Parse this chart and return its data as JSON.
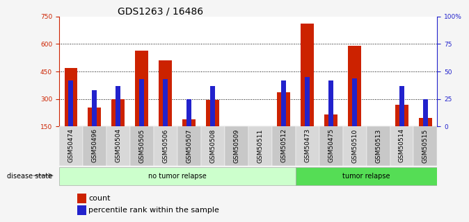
{
  "title": "GDS1263 / 16486",
  "samples": [
    "GSM50474",
    "GSM50496",
    "GSM50504",
    "GSM50505",
    "GSM50506",
    "GSM50507",
    "GSM50508",
    "GSM50509",
    "GSM50511",
    "GSM50512",
    "GSM50473",
    "GSM50475",
    "GSM50510",
    "GSM50513",
    "GSM50514",
    "GSM50515"
  ],
  "count_values": [
    470,
    255,
    300,
    565,
    510,
    190,
    295,
    150,
    150,
    335,
    710,
    215,
    590,
    150,
    270,
    195
  ],
  "percentile_values": [
    42,
    33,
    37,
    43,
    43,
    25,
    37,
    0,
    0,
    42,
    45,
    42,
    44,
    0,
    37,
    25
  ],
  "groups": [
    {
      "label": "no tumor relapse",
      "start": 0,
      "end": 10,
      "color": "#ccffcc"
    },
    {
      "label": "tumor relapse",
      "start": 10,
      "end": 16,
      "color": "#55dd55"
    }
  ],
  "ylim_left": [
    150,
    750
  ],
  "ylim_right": [
    0,
    100
  ],
  "yticks_left": [
    150,
    300,
    450,
    600,
    750
  ],
  "yticks_right": [
    0,
    25,
    50,
    75,
    100
  ],
  "yticklabels_right": [
    "0",
    "25",
    "50",
    "75",
    "100%"
  ],
  "bar_color_count": "#cc2200",
  "bar_color_pct": "#2222cc",
  "bar_width": 0.55,
  "pct_bar_width": 0.2,
  "disease_state_label": "disease state",
  "legend_count": "count",
  "legend_pct": "percentile rank within the sample",
  "bg_color": "#f5f5f5",
  "plot_bg": "#ffffff",
  "title_fontsize": 10,
  "tick_fontsize": 6.5,
  "label_fontsize": 8
}
